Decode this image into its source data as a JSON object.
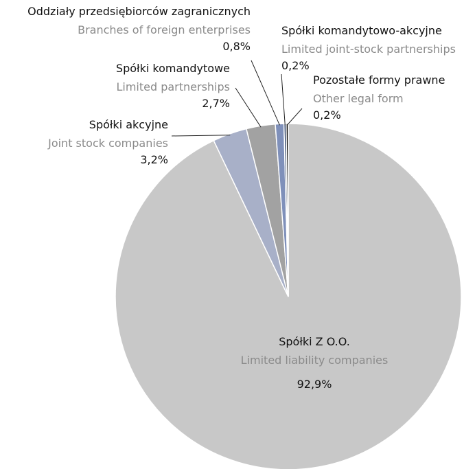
{
  "chart_data": {
    "type": "pie",
    "categories": [
      "Spółki Z O.O.",
      "Spółki akcyjne",
      "Spółki komandytowe",
      "Oddziały przedsiębiorców zagranicznych",
      "Spółki komandytowo-akcyjne",
      "Pozostałe formy prawne"
    ],
    "subcategories": [
      "Limited liability companies",
      "Joint stock companies",
      "Limited partnerships",
      "Branches of foreign enterprises",
      "Limited joint-stock partnerships",
      "Other legal form"
    ],
    "values": [
      92.9,
      3.2,
      2.7,
      0.8,
      0.2,
      0.2
    ],
    "value_labels": [
      "92,9%",
      "3,2%",
      "2,7%",
      "0,8%",
      "0,2%",
      "0,2%"
    ],
    "colors": [
      "#c8c8c8",
      "#a8b0c8",
      "#a2a2a2",
      "#7f90ba",
      "#24395f",
      "#111111"
    ]
  }
}
